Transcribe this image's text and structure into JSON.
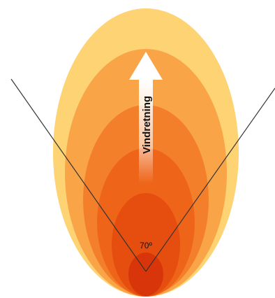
{
  "diagram": {
    "wind_label": "Vindretning",
    "angle_label": "70º",
    "colors": {
      "zone_1": "#FDD374",
      "zone_2": "#FAA448",
      "zone_3": "#F47F2B",
      "zone_4": "#EE6519",
      "zone_5": "#E54E0F",
      "zone_6": "#D8360A",
      "arrow_fill": "#FFFFFF",
      "lines": "#333333",
      "text": "#111111"
    }
  }
}
